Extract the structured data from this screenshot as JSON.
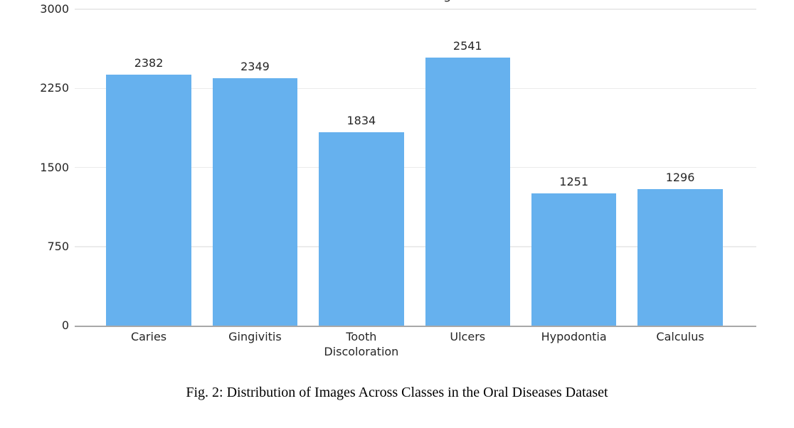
{
  "figure": {
    "caption": "Fig. 2: Distribution of Images Across Classes in the Oral Diseases Dataset",
    "clipped_title_fragment": "g"
  },
  "chart_data": {
    "type": "bar",
    "title": "",
    "xlabel": "",
    "ylabel": "",
    "categories": [
      "Caries",
      "Gingivitis",
      "Tooth Discoloration",
      "Ulcers",
      "Hypodontia",
      "Calculus"
    ],
    "category_display_lines": [
      [
        "Caries"
      ],
      [
        "Gingivitis"
      ],
      [
        "Tooth",
        "Discoloration"
      ],
      [
        "Ulcers"
      ],
      [
        "Hypodontia"
      ],
      [
        "Calculus"
      ]
    ],
    "values": [
      2382,
      2349,
      1834,
      2541,
      1251,
      1296
    ],
    "value_labels_shown": true,
    "yticks": [
      0,
      750,
      1500,
      2250,
      3000
    ],
    "ylim": [
      0,
      3000
    ],
    "grid": true,
    "legend": "none",
    "colors": {
      "bar": "#66b1ee",
      "gridline": "#ebebeb",
      "axis_line": "#a8a8a8",
      "tick_label": "#262626"
    }
  }
}
